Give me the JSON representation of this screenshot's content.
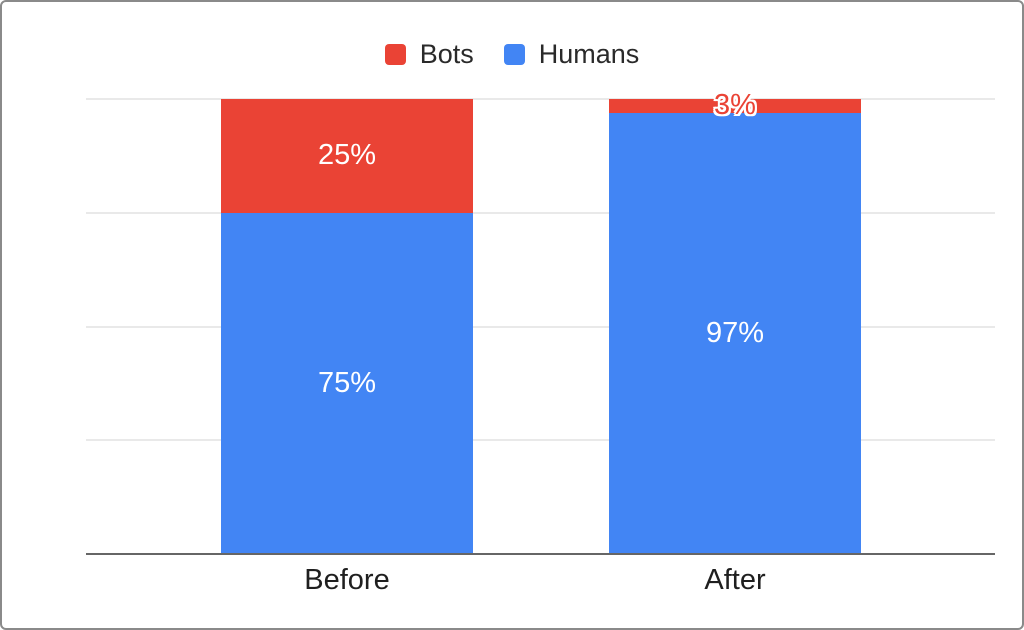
{
  "chart_data": {
    "type": "bar",
    "stacked": true,
    "orientation": "vertical",
    "title": "",
    "xlabel": "",
    "ylabel": "",
    "categories": [
      "Before",
      "After"
    ],
    "series": [
      {
        "name": "Bots",
        "color": "#EA4335",
        "values": [
          25,
          3
        ]
      },
      {
        "name": "Humans",
        "color": "#4285F4",
        "values": [
          75,
          97
        ]
      }
    ],
    "data_labels": [
      [
        "25%",
        "3%"
      ],
      [
        "75%",
        "97%"
      ]
    ],
    "ylim": [
      0,
      100
    ],
    "grid": true,
    "gridline_values": [
      0,
      25,
      50,
      75,
      100
    ],
    "y_axis_labels_shown": false,
    "legend_position": "top"
  },
  "colors": {
    "background": "#ffffff",
    "frame_border": "#8a8a8a",
    "gridline": "#e9e9e9",
    "axis_line": "#666666",
    "legend_text": "#2a2a2a",
    "category_text": "#1f1f1f",
    "label_inside": "#ffffff",
    "label_outside": "#EA4335"
  }
}
